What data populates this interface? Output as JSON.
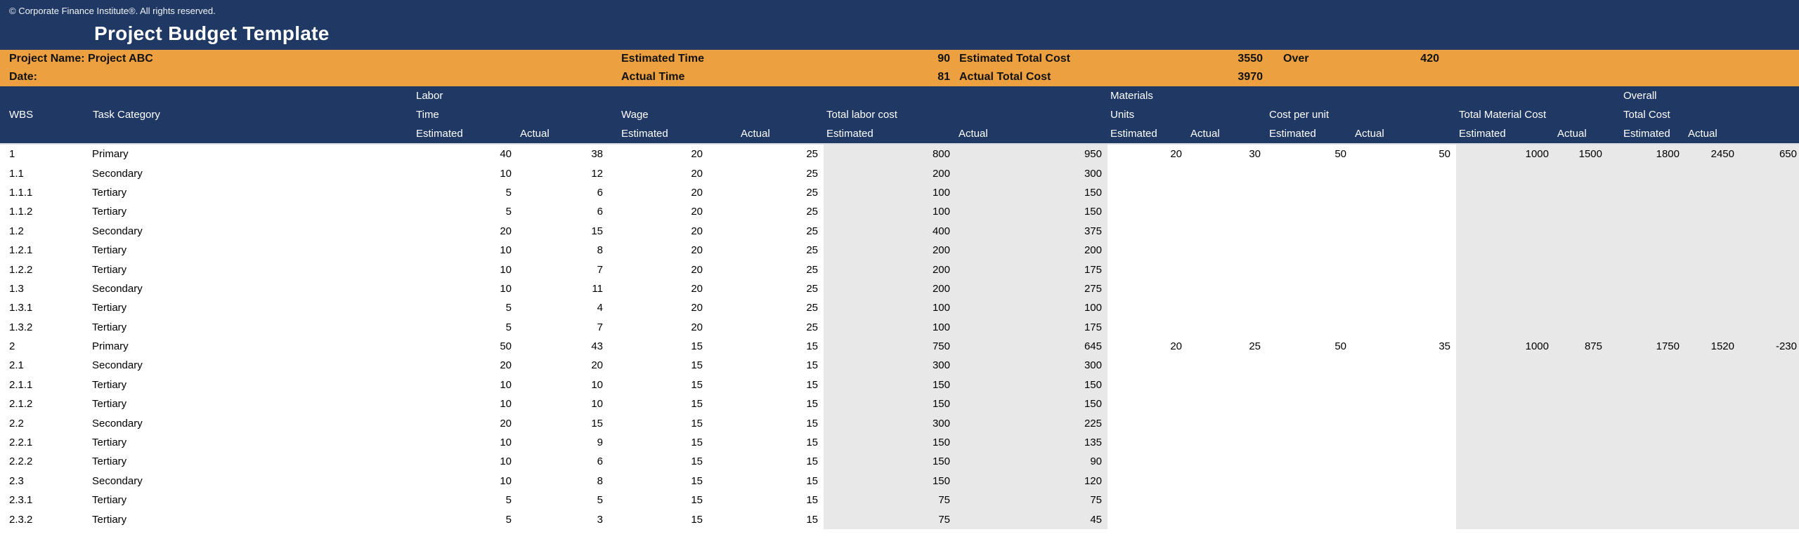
{
  "app": {
    "copyright": "© Corporate Finance Institute®. All rights reserved.",
    "title": "Project Budget Template"
  },
  "colors": {
    "navy": "#1F3864",
    "orange": "#EDA03F",
    "band_gray": "#E8E8E8",
    "header_text": "#FFFFFF",
    "body_text": "#000000",
    "info_text": "#121212"
  },
  "info": {
    "project_name": "Project Name: Project ABC",
    "date_label": "Date:",
    "estimated_time_label": "Estimated Time",
    "estimated_time_value": "90",
    "estimated_total_cost_label": "Estimated Total Cost",
    "estimated_total_cost_value": "3550",
    "over_label": "Over",
    "over_value": "420",
    "actual_time_label": "Actual Time",
    "actual_time_value": "81",
    "actual_total_cost_label": "Actual Total Cost",
    "actual_total_cost_value": "3970"
  },
  "table": {
    "column_keys": [
      "wbs",
      "task-category",
      "labor-time-estimated",
      "labor-time-actual",
      "wage-estimated",
      "wage-actual",
      "total-labor-cost-estimated",
      "total-labor-cost-actual",
      "materials-units-estimated",
      "materials-units-actual",
      "cost-per-unit-estimated",
      "cost-per-unit-actual",
      "total-material-cost-estimated",
      "total-material-cost-actual",
      "overall-total-cost-estimated",
      "overall-total-cost-actual",
      "overall-over-under"
    ],
    "header_lines": [
      [
        "",
        "",
        "Labor",
        "",
        "",
        "",
        "",
        "",
        "Materials",
        "",
        "",
        "",
        "",
        "",
        "Overall",
        "",
        ""
      ],
      [
        "WBS",
        "Task Category",
        "Time",
        "",
        "Wage",
        "",
        "Total labor cost",
        "",
        "Units",
        "",
        "Cost per unit",
        "",
        "Total Material Cost",
        "",
        "Total Cost",
        "",
        ""
      ],
      [
        "",
        "",
        "Estimated",
        "Actual",
        "Estimated",
        "Actual",
        "Estimated",
        "Actual",
        "Estimated",
        "Actual",
        "Estimated",
        "Actual",
        "Estimated",
        "Actual",
        "Estimated",
        "Actual",
        ""
      ]
    ],
    "rows": [
      [
        "1",
        "Primary",
        "40",
        "38",
        "20",
        "25",
        "800",
        "950",
        "20",
        "30",
        "50",
        "50",
        "1000",
        "1500",
        "1800",
        "2450",
        "650"
      ],
      [
        "1.1",
        "Secondary",
        "10",
        "12",
        "20",
        "25",
        "200",
        "300",
        "",
        "",
        "",
        "",
        "",
        "",
        "",
        "",
        ""
      ],
      [
        "1.1.1",
        "Tertiary",
        "5",
        "6",
        "20",
        "25",
        "100",
        "150",
        "",
        "",
        "",
        "",
        "",
        "",
        "",
        "",
        ""
      ],
      [
        "1.1.2",
        "Tertiary",
        "5",
        "6",
        "20",
        "25",
        "100",
        "150",
        "",
        "",
        "",
        "",
        "",
        "",
        "",
        "",
        ""
      ],
      [
        "1.2",
        "Secondary",
        "20",
        "15",
        "20",
        "25",
        "400",
        "375",
        "",
        "",
        "",
        "",
        "",
        "",
        "",
        "",
        ""
      ],
      [
        "1.2.1",
        "Tertiary",
        "10",
        "8",
        "20",
        "25",
        "200",
        "200",
        "",
        "",
        "",
        "",
        "",
        "",
        "",
        "",
        ""
      ],
      [
        "1.2.2",
        "Tertiary",
        "10",
        "7",
        "20",
        "25",
        "200",
        "175",
        "",
        "",
        "",
        "",
        "",
        "",
        "",
        "",
        ""
      ],
      [
        "1.3",
        "Secondary",
        "10",
        "11",
        "20",
        "25",
        "200",
        "275",
        "",
        "",
        "",
        "",
        "",
        "",
        "",
        "",
        ""
      ],
      [
        "1.3.1",
        "Tertiary",
        "5",
        "4",
        "20",
        "25",
        "100",
        "100",
        "",
        "",
        "",
        "",
        "",
        "",
        "",
        "",
        ""
      ],
      [
        "1.3.2",
        "Tertiary",
        "5",
        "7",
        "20",
        "25",
        "100",
        "175",
        "",
        "",
        "",
        "",
        "",
        "",
        "",
        "",
        ""
      ],
      [
        "2",
        "Primary",
        "50",
        "43",
        "15",
        "15",
        "750",
        "645",
        "20",
        "25",
        "50",
        "35",
        "1000",
        "875",
        "1750",
        "1520",
        "-230"
      ],
      [
        "2.1",
        "Secondary",
        "20",
        "20",
        "15",
        "15",
        "300",
        "300",
        "",
        "",
        "",
        "",
        "",
        "",
        "",
        "",
        ""
      ],
      [
        "2.1.1",
        "Tertiary",
        "10",
        "10",
        "15",
        "15",
        "150",
        "150",
        "",
        "",
        "",
        "",
        "",
        "",
        "",
        "",
        ""
      ],
      [
        "2.1.2",
        "Tertiary",
        "10",
        "10",
        "15",
        "15",
        "150",
        "150",
        "",
        "",
        "",
        "",
        "",
        "",
        "",
        "",
        ""
      ],
      [
        "2.2",
        "Secondary",
        "20",
        "15",
        "15",
        "15",
        "300",
        "225",
        "",
        "",
        "",
        "",
        "",
        "",
        "",
        "",
        ""
      ],
      [
        "2.2.1",
        "Tertiary",
        "10",
        "9",
        "15",
        "15",
        "150",
        "135",
        "",
        "",
        "",
        "",
        "",
        "",
        "",
        "",
        ""
      ],
      [
        "2.2.2",
        "Tertiary",
        "10",
        "6",
        "15",
        "15",
        "150",
        "90",
        "",
        "",
        "",
        "",
        "",
        "",
        "",
        "",
        ""
      ],
      [
        "2.3",
        "Secondary",
        "10",
        "8",
        "15",
        "15",
        "150",
        "120",
        "",
        "",
        "",
        "",
        "",
        "",
        "",
        "",
        ""
      ],
      [
        "2.3.1",
        "Tertiary",
        "5",
        "5",
        "15",
        "15",
        "75",
        "75",
        "",
        "",
        "",
        "",
        "",
        "",
        "",
        "",
        ""
      ],
      [
        "2.3.2",
        "Tertiary",
        "5",
        "3",
        "15",
        "15",
        "75",
        "45",
        "",
        "",
        "",
        "",
        "",
        "",
        "",
        "",
        ""
      ]
    ],
    "gray_band_columns": [
      6,
      7,
      12,
      13,
      14,
      15,
      16
    ]
  }
}
